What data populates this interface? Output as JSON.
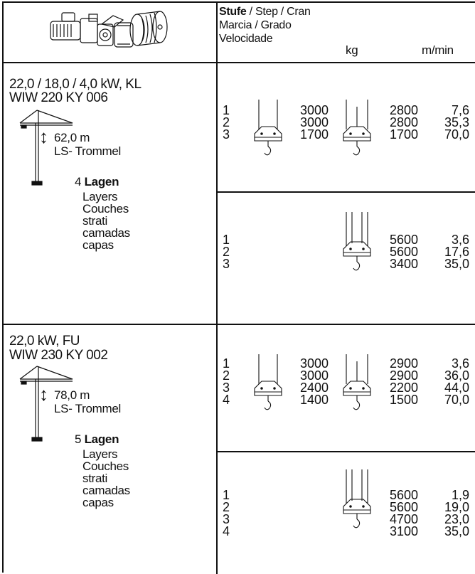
{
  "header": {
    "title_bold": "Stufe",
    "title_rest": " / Step / Cran",
    "line2": "Marcia / Grado",
    "line3": "Velocidade",
    "unit_kg": "kg",
    "unit_speed": "m/min"
  },
  "sections": [
    {
      "power": "22,0 / 18,0 / 4,0 kW, KL",
      "model": "WIW 220 KY 006",
      "rope_length": "62,0 m",
      "drum": "LS- Trommel",
      "layers_count": "4",
      "layers_bold": "Lagen",
      "layers_translations": [
        "Layers",
        "Couches",
        "strati",
        "camadas",
        "capas"
      ],
      "upper": {
        "steps": [
          "1",
          "2",
          "3"
        ],
        "kg_a": [
          "3000",
          "3000",
          "1700"
        ],
        "kg_b": [
          "2800",
          "2800",
          "1700"
        ],
        "speed": [
          "7,6",
          "35,3",
          "70,0"
        ]
      },
      "lower": {
        "steps": [
          "1",
          "2",
          "3"
        ],
        "kg_b": [
          "5600",
          "5600",
          "3400"
        ],
        "speed": [
          "3,6",
          "17,6",
          "35,0"
        ]
      }
    },
    {
      "power": "22,0 kW, FU",
      "model": "WIW 230 KY 002",
      "rope_length": "78,0 m",
      "drum": "LS- Trommel",
      "layers_count": "5",
      "layers_bold": "Lagen",
      "layers_translations": [
        "Layers",
        "Couches",
        "strati",
        "camadas",
        "capas"
      ],
      "upper": {
        "steps": [
          "1",
          "2",
          "3",
          "4"
        ],
        "kg_a": [
          "3000",
          "3000",
          "2400",
          "1400"
        ],
        "kg_b": [
          "2900",
          "2900",
          "2200",
          "1500"
        ],
        "speed": [
          "3,6",
          "36,0",
          "44,0",
          "70,0"
        ]
      },
      "lower": {
        "steps": [
          "1",
          "2",
          "3",
          "4"
        ],
        "kg_b": [
          "5600",
          "5600",
          "4700",
          "3100"
        ],
        "speed": [
          "1,9",
          "19,0",
          "23,0",
          "35,0"
        ]
      }
    }
  ]
}
